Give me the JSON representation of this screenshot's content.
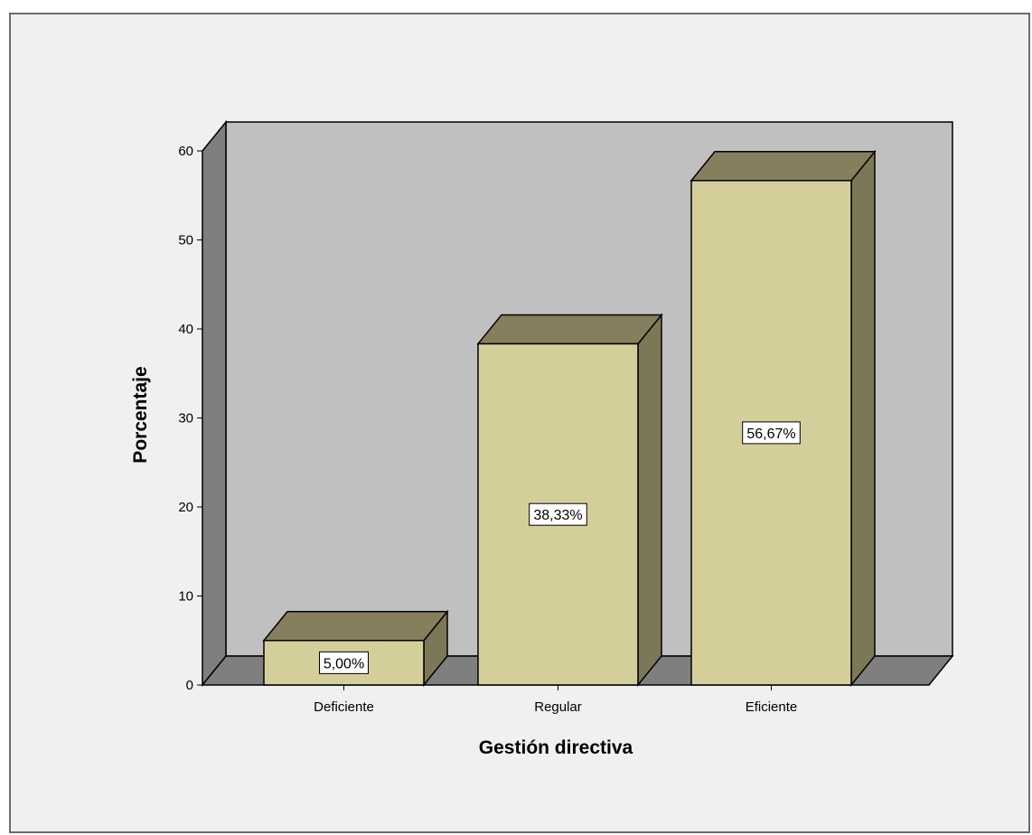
{
  "chart_data": {
    "type": "bar",
    "categories": [
      "Deficiente",
      "Regular",
      "Eficiente"
    ],
    "values": [
      5.0,
      38.33,
      56.67
    ],
    "data_labels": [
      "5,00%",
      "38,33%",
      "56,67%"
    ],
    "xlabel": "Gestión directiva",
    "ylabel": "Porcentaje",
    "ylim": [
      0,
      60
    ],
    "yticks": [
      0,
      10,
      20,
      30,
      40,
      50,
      60
    ],
    "three_d": true,
    "grid": false,
    "colors": {
      "bar_front": "#d4cf9a",
      "bar_top": "#857f5e",
      "bar_side": "#7c7757",
      "back_wall": "#c0c0c0",
      "side_wall": "#7f7f7f",
      "floor": "#7f7f7f",
      "frame_background": "#f0f0f0",
      "label_box": "#ffffff"
    }
  }
}
